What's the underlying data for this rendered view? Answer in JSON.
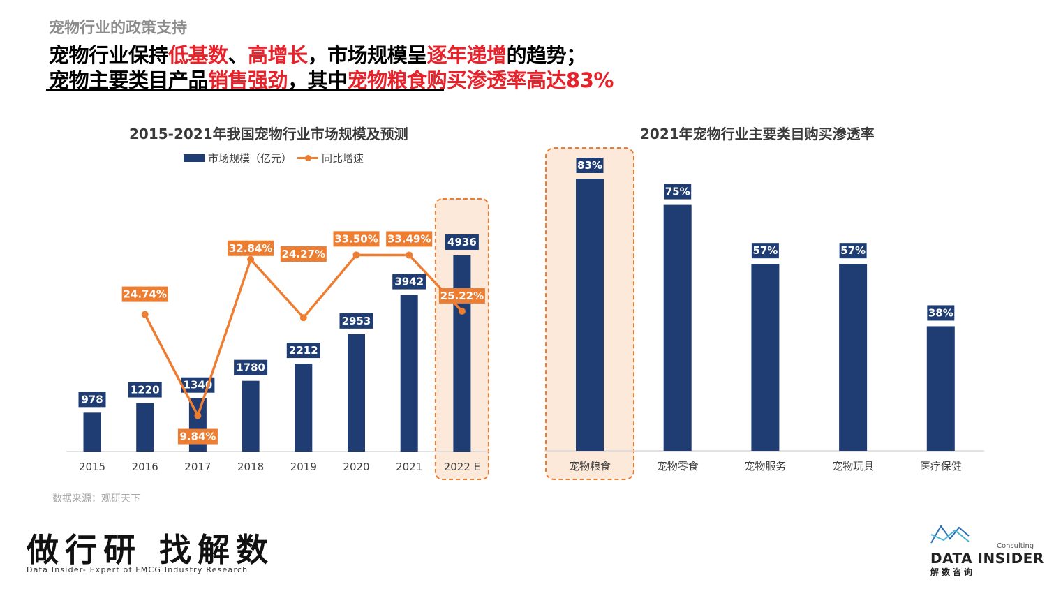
{
  "section_title": "宠物行业的政策支持",
  "headline": {
    "line1": [
      {
        "text": "宠物行业保持",
        "hl": false
      },
      {
        "text": "低基数",
        "hl": true
      },
      {
        "text": "、",
        "hl": false
      },
      {
        "text": "高增长",
        "hl": true
      },
      {
        "text": "，市场规模呈",
        "hl": false
      },
      {
        "text": "逐年递增",
        "hl": true
      },
      {
        "text": "的趋势；",
        "hl": false
      }
    ],
    "line2": [
      {
        "text": "宠物主要类目产品",
        "hl": false
      },
      {
        "text": "销售强劲",
        "hl": true
      },
      {
        "text": "，其中",
        "hl": false
      },
      {
        "text": "宠物粮食购买渗透率高达83%",
        "hl": true
      }
    ]
  },
  "colors": {
    "bar": "#1f3d73",
    "line": "#ed7d31",
    "highlight_fill": "#fce9da",
    "highlight_border": "#ed7d31",
    "accent_red": "#e8222a"
  },
  "chart_data": [
    {
      "type": "bar",
      "title": "2015-2021年我国宠物行业市场规模及预测",
      "categories": [
        "2015",
        "2016",
        "2017",
        "2018",
        "2019",
        "2020",
        "2021",
        "2022 E"
      ],
      "series": [
        {
          "name": "市场规模（亿元）",
          "values": [
            978,
            1220,
            1340,
            1780,
            2212,
            2953,
            3942,
            4936
          ],
          "labels": [
            "978",
            "1220",
            "1340",
            "1780",
            "2212",
            "2953",
            "3942",
            "4936"
          ]
        },
        {
          "name": "同比增速",
          "type": "line",
          "values": [
            null,
            24.74,
            9.84,
            32.84,
            24.27,
            33.5,
            33.49,
            25.22
          ],
          "labels": [
            "",
            "24.74%",
            "9.84%",
            "32.84%",
            "24.27%",
            "33.50%",
            "33.49%",
            "25.22%"
          ]
        }
      ],
      "highlight": "2022 E",
      "legend": "top"
    },
    {
      "type": "bar",
      "title": "2021年宠物行业主要类目购买渗透率",
      "categories": [
        "宠物粮食",
        "宠物零食",
        "宠物服务",
        "宠物玩具",
        "医疗保健"
      ],
      "values": [
        83,
        75,
        57,
        57,
        38
      ],
      "labels": [
        "83%",
        "75%",
        "57%",
        "57%",
        "38%"
      ],
      "highlight": "宠物粮食"
    }
  ],
  "legend": {
    "bar_label": "市场规模（亿元）",
    "line_label": "同比增速"
  },
  "source": "数据来源：观研天下",
  "footer": {
    "slogan": "做行研 找解数",
    "subtitle": "Data Insider- Expert of FMCG Industry Research",
    "brand_small": "Consulting",
    "brand_name": "DATA INSIDER",
    "brand_cn": "解数咨询"
  }
}
